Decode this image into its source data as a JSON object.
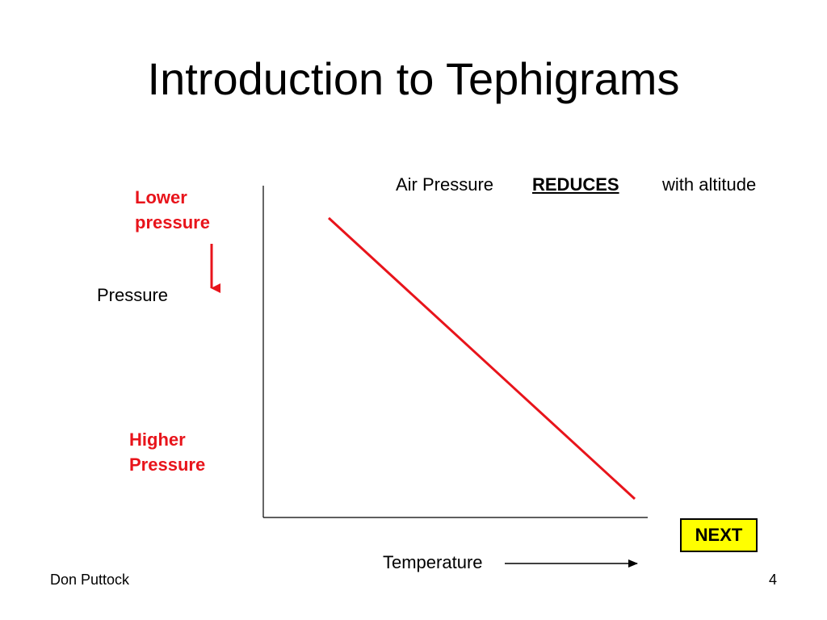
{
  "slide": {
    "title": "Introduction to Tephigrams",
    "author": "Don Puttock",
    "page_number": "4"
  },
  "diagram": {
    "statement": {
      "prefix": "Air Pressure",
      "emphasis": "REDUCES",
      "suffix": "with altitude"
    },
    "y_axis_label": "Pressure",
    "x_axis_label": "Temperature",
    "top_label": "Lower pressure",
    "bottom_label": "Higher Pressure",
    "line_color": "#e8141b",
    "axis_color": "#000000",
    "label_color": "#e8141b"
  },
  "navigation": {
    "next_label": "NEXT",
    "next_bg": "#ffff00"
  }
}
